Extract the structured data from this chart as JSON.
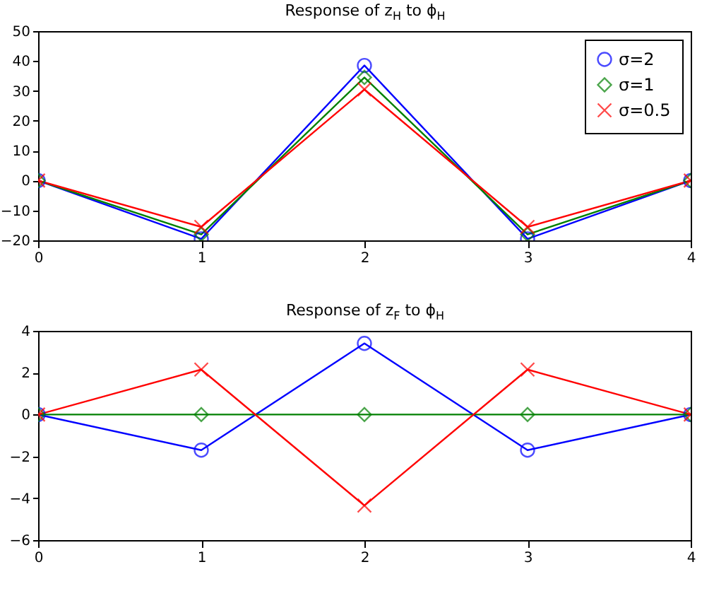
{
  "chart_data": [
    {
      "type": "line",
      "title": "Response of z$_{H}$ to ϕ$_{H}$",
      "x": [
        0,
        1,
        2,
        3,
        4
      ],
      "xlim": [
        0,
        4
      ],
      "xticks": [
        0,
        1,
        2,
        3,
        4
      ],
      "ylim": [
        -20,
        50
      ],
      "yticks": [
        -20,
        -10,
        0,
        10,
        20,
        30,
        40,
        50
      ],
      "grid": false,
      "legend": "top right",
      "series": [
        {
          "name": "σ=2",
          "color": "#0000ff",
          "marker": "circle",
          "values": [
            0,
            -19.5,
            38.5,
            -19.5,
            0
          ]
        },
        {
          "name": "σ=1",
          "color": "#008000",
          "marker": "diamond",
          "values": [
            0,
            -18,
            34.5,
            -18,
            0
          ]
        },
        {
          "name": "σ=0.5",
          "color": "#ff0000",
          "marker": "cross",
          "values": [
            0,
            -15.5,
            30.5,
            -15.5,
            0
          ]
        }
      ]
    },
    {
      "type": "line",
      "title": "Response of z$_{F}$ to ϕ$_{H}$",
      "x": [
        0,
        1,
        2,
        3,
        4
      ],
      "xlim": [
        0,
        4
      ],
      "xticks": [
        0,
        1,
        2,
        3,
        4
      ],
      "ylim": [
        -6,
        4
      ],
      "yticks": [
        -6,
        -4,
        -2,
        0,
        2,
        4
      ],
      "grid": false,
      "legend": false,
      "series": [
        {
          "color": "#0000ff",
          "marker": "circle",
          "values": [
            0,
            -1.7,
            3.4,
            -1.7,
            0
          ]
        },
        {
          "color": "#008000",
          "marker": "diamond",
          "values": [
            0,
            0,
            0,
            0,
            0
          ]
        },
        {
          "color": "#ff0000",
          "marker": "cross",
          "values": [
            0,
            2.15,
            -4.35,
            2.15,
            0
          ]
        }
      ]
    }
  ]
}
